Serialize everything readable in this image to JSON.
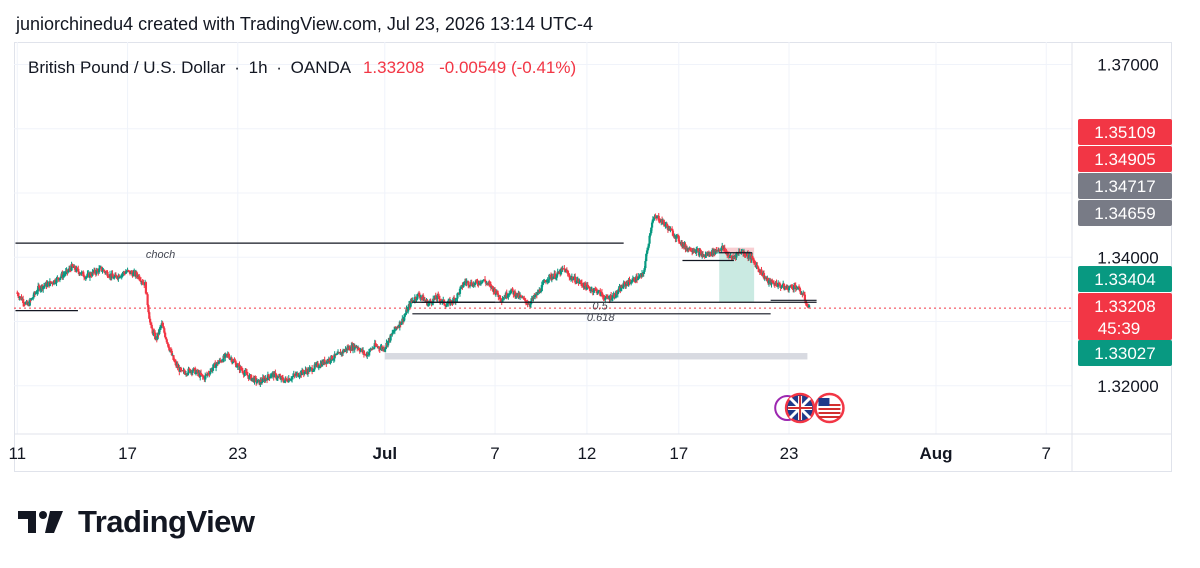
{
  "header": {
    "credit": "juniorchinedu4 created with TradingView.com, Jul 23, 2026 13:14 UTC-4"
  },
  "legend": {
    "symbol": "British Pound / U.S. Dollar",
    "interval": "1h",
    "exchange": "OANDA",
    "price": "1.33208",
    "change": "-0.00549 (-0.41%)",
    "separator": "·"
  },
  "brand": {
    "name": "TradingView",
    "icon": "tradingview-logo-icon"
  },
  "colors": {
    "up": "#089981",
    "down": "#f23645",
    "axis_text": "#131722",
    "grid": "#f0f3fa"
  },
  "chart_data": {
    "type": "candlestick",
    "symbol": "GBPUSD",
    "timeframe": "1h",
    "y_axis": {
      "range": [
        1.3125,
        1.3735
      ],
      "ticks": [
        {
          "value": 1.37,
          "label": "1.37000"
        },
        {
          "value": 1.34,
          "label": "1.34000"
        },
        {
          "value": 1.32,
          "label": "1.32000"
        }
      ]
    },
    "x_axis": {
      "range": [
        -0.18,
        57.4
      ],
      "ticks": [
        {
          "day": 0,
          "label": "11"
        },
        {
          "day": 6,
          "label": "17"
        },
        {
          "day": 12,
          "label": "23"
        },
        {
          "day": 20,
          "label": "Jul",
          "bold": true
        },
        {
          "day": 26,
          "label": "7"
        },
        {
          "day": 31,
          "label": "12"
        },
        {
          "day": 36,
          "label": "17"
        },
        {
          "day": 42,
          "label": "23"
        },
        {
          "day": 50,
          "label": "Aug",
          "bold": true
        },
        {
          "day": 56,
          "label": "7"
        }
      ]
    },
    "price_path": [
      [
        0,
        1.3345
      ],
      [
        0.6,
        1.3325
      ],
      [
        1.2,
        1.3352
      ],
      [
        2.0,
        1.3362
      ],
      [
        2.8,
        1.3378
      ],
      [
        3.0,
        1.3385
      ],
      [
        3.8,
        1.337
      ],
      [
        4.6,
        1.3382
      ],
      [
        5.3,
        1.3368
      ],
      [
        6.0,
        1.3378
      ],
      [
        6.6,
        1.3372
      ],
      [
        7.0,
        1.3358
      ],
      [
        7.3,
        1.3292
      ],
      [
        7.6,
        1.3272
      ],
      [
        7.9,
        1.3296
      ],
      [
        8.3,
        1.326
      ],
      [
        8.6,
        1.3236
      ],
      [
        9.0,
        1.322
      ],
      [
        9.6,
        1.3225
      ],
      [
        10.2,
        1.3212
      ],
      [
        10.8,
        1.3232
      ],
      [
        11.5,
        1.3248
      ],
      [
        12.0,
        1.3232
      ],
      [
        12.6,
        1.3215
      ],
      [
        13.2,
        1.3205
      ],
      [
        13.9,
        1.3218
      ],
      [
        14.6,
        1.3208
      ],
      [
        15.3,
        1.3218
      ],
      [
        16.0,
        1.3225
      ],
      [
        16.8,
        1.3238
      ],
      [
        17.5,
        1.3248
      ],
      [
        18.0,
        1.3258
      ],
      [
        18.5,
        1.3262
      ],
      [
        19.0,
        1.3248
      ],
      [
        19.5,
        1.3262
      ],
      [
        20.0,
        1.3258
      ],
      [
        20.6,
        1.3288
      ],
      [
        21.0,
        1.3302
      ],
      [
        21.5,
        1.3332
      ],
      [
        21.9,
        1.3342
      ],
      [
        22.4,
        1.3328
      ],
      [
        22.9,
        1.3338
      ],
      [
        23.4,
        1.3326
      ],
      [
        23.9,
        1.3336
      ],
      [
        24.4,
        1.3362
      ],
      [
        24.9,
        1.3358
      ],
      [
        25.4,
        1.3365
      ],
      [
        25.9,
        1.3352
      ],
      [
        26.4,
        1.3335
      ],
      [
        26.9,
        1.3348
      ],
      [
        27.4,
        1.3338
      ],
      [
        27.9,
        1.3328
      ],
      [
        28.4,
        1.3345
      ],
      [
        28.9,
        1.3368
      ],
      [
        29.4,
        1.3372
      ],
      [
        29.8,
        1.3382
      ],
      [
        30.1,
        1.337
      ],
      [
        30.6,
        1.3362
      ],
      [
        31.1,
        1.3352
      ],
      [
        31.6,
        1.3348
      ],
      [
        32.1,
        1.3335
      ],
      [
        32.6,
        1.3342
      ],
      [
        33.1,
        1.3358
      ],
      [
        33.6,
        1.3365
      ],
      [
        34.1,
        1.3372
      ],
      [
        34.6,
        1.3458
      ],
      [
        34.9,
        1.3462
      ],
      [
        35.4,
        1.3448
      ],
      [
        35.9,
        1.3432
      ],
      [
        36.4,
        1.3415
      ],
      [
        36.9,
        1.3412
      ],
      [
        37.4,
        1.3402
      ],
      [
        37.9,
        1.3408
      ],
      [
        38.4,
        1.3415
      ],
      [
        38.9,
        1.3398
      ],
      [
        39.4,
        1.341
      ],
      [
        39.9,
        1.3402
      ],
      [
        40.4,
        1.3382
      ],
      [
        40.9,
        1.3362
      ],
      [
        41.4,
        1.3358
      ],
      [
        41.9,
        1.3352
      ],
      [
        42.4,
        1.3355
      ],
      [
        42.8,
        1.3342
      ],
      [
        43.1,
        1.3321
      ]
    ],
    "price_labels": [
      {
        "value": 1.35109,
        "label": "1.35109",
        "color": "#f23645"
      },
      {
        "value": 1.34905,
        "label": "1.34905",
        "color": "#f23645"
      },
      {
        "value": 1.34717,
        "label": "1.34717",
        "color": "#787b86"
      },
      {
        "value": 1.34659,
        "label": "1.34659",
        "color": "#787b86"
      },
      {
        "value": 1.33404,
        "label": "1.33404",
        "color": "#089981"
      },
      {
        "value": 1.33208,
        "label": "1.33208",
        "sublabel": "45:39",
        "color": "#f23645"
      },
      {
        "value": 1.33027,
        "label": "1.33027",
        "color": "#089981"
      }
    ],
    "annotations": {
      "lines": [
        {
          "x1": -0.1,
          "x2": 33.0,
          "y": 1.3422,
          "label": "choch",
          "label_x": 7.0
        },
        {
          "x1": -0.1,
          "x2": 3.3,
          "y": 1.3317
        },
        {
          "x1": 21.5,
          "x2": 43.5,
          "y": 1.333,
          "label": "0.5",
          "label_x": 31.3
        },
        {
          "x1": 21.5,
          "x2": 41.0,
          "y": 1.3312,
          "label": "0.618",
          "label_x": 31.0
        },
        {
          "x1": 41.0,
          "x2": 43.5,
          "y": 1.3333
        },
        {
          "x1": 22.0,
          "x2": 26.0,
          "y": 1.333
        },
        {
          "x1": 36.2,
          "x2": 39.0,
          "y": 1.3395
        },
        {
          "x1": 38.2,
          "x2": 40.0,
          "y": 1.3407
        }
      ],
      "zones": [
        {
          "x1": 20.0,
          "x2": 43.0,
          "y_low": 1.3241,
          "y_high": 1.3251,
          "color": "#d1d4dc"
        }
      ],
      "position": {
        "x1": 38.2,
        "x2": 40.1,
        "entry": 1.3407,
        "stop": 1.3415,
        "target": 1.333
      },
      "current_price": 1.33208
    },
    "events": [
      {
        "day": 41.9,
        "icon": "event-icon"
      },
      {
        "day": 42.6,
        "icon": "uk-flag-icon"
      },
      {
        "day": 44.2,
        "icon": "us-flag-icon"
      }
    ]
  }
}
